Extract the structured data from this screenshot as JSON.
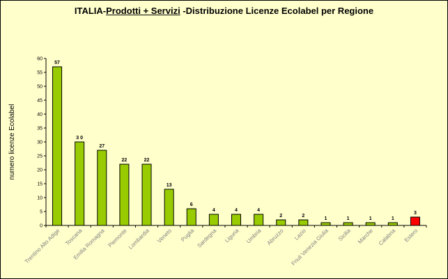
{
  "chart_data": {
    "type": "bar",
    "title_parts": [
      "ITALIA-",
      "Prodotti + Servizi",
      " -Distribuzione Licenze Ecolabel per Regione"
    ],
    "ylabel": "numero licenze Ecolabel",
    "xlabel": "",
    "ylim": [
      0,
      60
    ],
    "ytick_step": 5,
    "grid": false,
    "categories": [
      "Trentino Alto Adige",
      "Toscana",
      "Emilia Romagna",
      "Piemonte",
      "Lombardia",
      "Veneto",
      "Puglia",
      "Sardegna",
      "Liguria",
      "Umbria",
      "Abruzzo",
      "Lazio",
      "Friuli Venezia Giulia",
      "Sicilia",
      "Marche",
      "Calabria",
      "Estero"
    ],
    "values": [
      57,
      30,
      27,
      22,
      22,
      13,
      6,
      4,
      4,
      4,
      2,
      2,
      1,
      1,
      1,
      1,
      3
    ],
    "value_labels": [
      "57",
      "3 0",
      "27",
      "22",
      "22",
      "13",
      "6",
      "4",
      "4",
      "4",
      "2",
      "2",
      "1",
      "1",
      "1",
      "1",
      "3"
    ],
    "colors": {
      "default": "#99cc00",
      "highlight": "#ff0000",
      "highlight_label": "#ff0000"
    },
    "highlight_category": "Estero"
  }
}
